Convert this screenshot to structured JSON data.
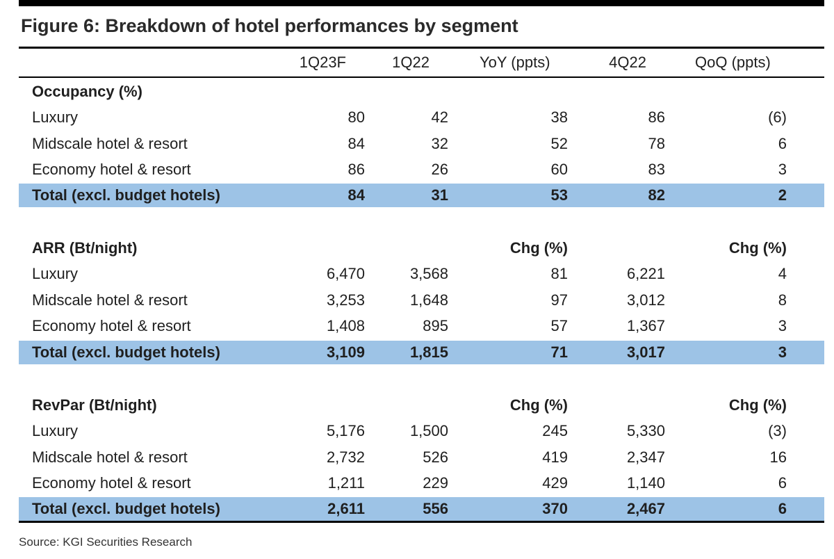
{
  "title": "Figure 6: Breakdown of hotel performances by segment",
  "columns": [
    "1Q23F",
    "1Q22",
    "YoY (ppts)",
    "4Q22",
    "QoQ (ppts)"
  ],
  "sections": [
    {
      "heading": "Occupancy (%)",
      "chg1": "",
      "chg2": "",
      "rows": [
        {
          "label": "Luxury",
          "v": [
            "80",
            "42",
            "38",
            "86",
            "(6)"
          ]
        },
        {
          "label": "Midscale hotel & resort",
          "v": [
            "84",
            "32",
            "52",
            "78",
            "6"
          ]
        },
        {
          "label": "Economy hotel & resort",
          "v": [
            "86",
            "26",
            "60",
            "83",
            "3"
          ]
        }
      ],
      "total": {
        "label": "Total (excl. budget hotels)",
        "v": [
          "84",
          "31",
          "53",
          "82",
          "2"
        ]
      }
    },
    {
      "heading": "ARR (Bt/night)",
      "chg1": "Chg (%)",
      "chg2": "Chg (%)",
      "rows": [
        {
          "label": "Luxury",
          "v": [
            "6,470",
            "3,568",
            "81",
            "6,221",
            "4"
          ]
        },
        {
          "label": "Midscale hotel & resort",
          "v": [
            "3,253",
            "1,648",
            "97",
            "3,012",
            "8"
          ]
        },
        {
          "label": "Economy hotel & resort",
          "v": [
            "1,408",
            "895",
            "57",
            "1,367",
            "3"
          ]
        }
      ],
      "total": {
        "label": "Total (excl. budget hotels)",
        "v": [
          "3,109",
          "1,815",
          "71",
          "3,017",
          "3"
        ]
      }
    },
    {
      "heading": "RevPar (Bt/night)",
      "chg1": "Chg (%)",
      "chg2": "Chg (%)",
      "rows": [
        {
          "label": "Luxury",
          "v": [
            "5,176",
            "1,500",
            "245",
            "5,330",
            "(3)"
          ]
        },
        {
          "label": "Midscale hotel & resort",
          "v": [
            "2,732",
            "526",
            "419",
            "2,347",
            "16"
          ]
        },
        {
          "label": "Economy hotel & resort",
          "v": [
            "1,211",
            "229",
            "429",
            "1,140",
            "6"
          ]
        }
      ],
      "total": {
        "label": "Total (excl. budget hotels)",
        "v": [
          "2,611",
          "556",
          "370",
          "2,467",
          "6"
        ]
      }
    }
  ],
  "source": "Source: KGI Securities Research",
  "colors": {
    "total_row_bg": "#9dc3e6",
    "rule": "#000000"
  }
}
